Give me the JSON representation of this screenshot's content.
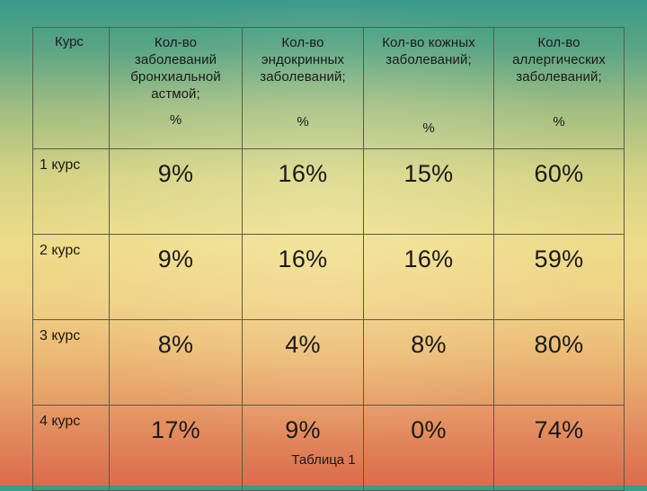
{
  "table": {
    "headers": [
      {
        "title": "Курс",
        "unit": ""
      },
      {
        "title": "Кол-во заболеваний бронхиальной астмой;",
        "unit": "%"
      },
      {
        "title": "Кол-во эндокринных заболеваний;",
        "unit": "%"
      },
      {
        "title": "Кол-во кожных заболеваний;",
        "unit": "%"
      },
      {
        "title": "Кол-во аллергических заболеваний;",
        "unit": "%"
      }
    ],
    "rows": [
      {
        "label": "1 курс",
        "values": [
          "9%",
          "16%",
          "15%",
          "60%"
        ]
      },
      {
        "label": "2 курс",
        "values": [
          "9%",
          "16%",
          "16%",
          "59%"
        ]
      },
      {
        "label": "3 курс",
        "values": [
          "8%",
          "4%",
          "8%",
          "80%"
        ]
      },
      {
        "label": "4 курс",
        "values": [
          "17%",
          "9%",
          "0%",
          "74%"
        ]
      }
    ]
  },
  "caption": "Таблица 1",
  "colors": {
    "background_top": "#3a9a8a",
    "background_middle": "#eedc8a",
    "background_bottom": "#db6b4c",
    "border": "#5a5a4a",
    "text": "#1a1a1a"
  }
}
